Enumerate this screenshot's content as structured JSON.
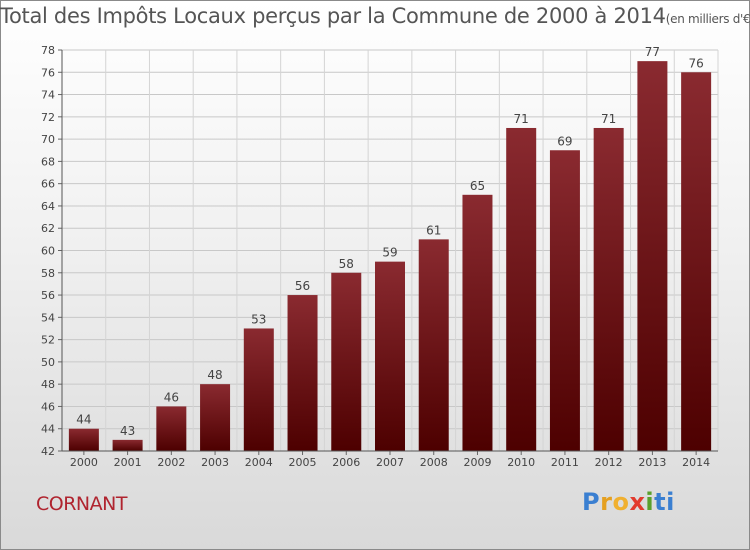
{
  "chart_data": {
    "type": "bar",
    "title": "Total des Impôts Locaux perçus par la Commune de 2000 à 2014",
    "unit": "(en milliers d'€)",
    "categories": [
      "2000",
      "2001",
      "2002",
      "2003",
      "2004",
      "2005",
      "2006",
      "2007",
      "2008",
      "2009",
      "2010",
      "2011",
      "2012",
      "2013",
      "2014"
    ],
    "values": [
      44,
      43,
      46,
      48,
      53,
      56,
      58,
      59,
      61,
      65,
      71,
      69,
      71,
      77,
      76
    ],
    "yticks": [
      42,
      44,
      46,
      48,
      50,
      52,
      54,
      56,
      58,
      60,
      62,
      64,
      66,
      68,
      70,
      72,
      74,
      76,
      78
    ],
    "ylim": [
      42,
      78
    ],
    "xlabel": "",
    "ylabel": "",
    "grid": true,
    "bar_color_top": "#8a2a30",
    "bar_color_bottom": "#4d0000"
  },
  "footer": {
    "commune": "CORNANT",
    "logo_letters": [
      "P",
      "r",
      "o",
      "x",
      "i",
      "ti"
    ]
  }
}
